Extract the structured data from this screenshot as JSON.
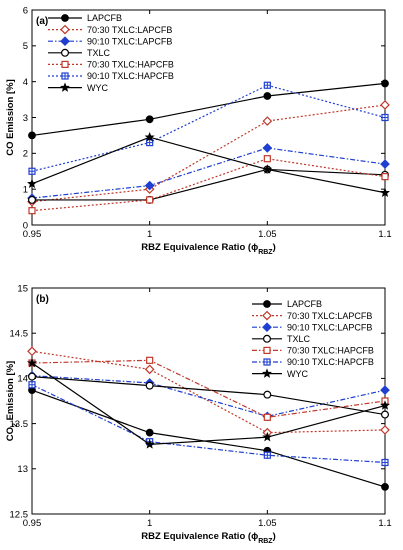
{
  "chart_data": [
    {
      "type": "line",
      "panel_label": "(a)",
      "xlabel_main": "RBZ Equivalence Ratio (",
      "xlabel_sym": "ϕ",
      "xlabel_sub": "RBZ",
      "xlabel_end": ")",
      "ylabel_main": "CO Emission [%]",
      "x": [
        0.95,
        1,
        1.05,
        1.1
      ],
      "x_tick_labels": [
        "0.95",
        "1",
        "1.05",
        "1.1"
      ],
      "ylim": [
        0,
        6
      ],
      "y_ticks": [
        0,
        1,
        2,
        3,
        4,
        5,
        6
      ],
      "legend_position": "top-left",
      "series": [
        {
          "name": "LAPCFB",
          "values": [
            2.5,
            2.95,
            3.6,
            3.95
          ],
          "color": "#000000",
          "dash": "",
          "marker": "circle-filled"
        },
        {
          "name": "70:30 TXLC:LAPCFB",
          "values": [
            0.65,
            1.0,
            2.9,
            3.35
          ],
          "color": "#c0392b",
          "dash": "2,2",
          "marker": "diamond-open"
        },
        {
          "name": "90:10 TXLC:LAPCFB",
          "values": [
            0.75,
            1.1,
            2.15,
            1.7
          ],
          "color": "#1f3fd0",
          "dash": "5,2,1.5,2",
          "marker": "diamond-filled"
        },
        {
          "name": "TXLC",
          "values": [
            0.7,
            0.7,
            1.55,
            1.4
          ],
          "color": "#000000",
          "dash": "",
          "marker": "circle-open"
        },
        {
          "name": "70:30 TXLC:HAPCFB",
          "values": [
            0.4,
            0.7,
            1.85,
            1.35
          ],
          "color": "#c0392b",
          "dash": "2,2",
          "marker": "square-open"
        },
        {
          "name": "90:10 TXLC:HAPCFB",
          "values": [
            1.5,
            2.3,
            3.9,
            3.0
          ],
          "color": "#1f3fd0",
          "dash": "2,2",
          "marker": "square-plus"
        },
        {
          "name": "WYC",
          "values": [
            1.15,
            2.45,
            1.55,
            0.9
          ],
          "color": "#000000",
          "dash": "",
          "marker": "star"
        }
      ]
    },
    {
      "type": "line",
      "panel_label": "(b)",
      "xlabel_main": "RBZ Equivalence Ratio (",
      "xlabel_sym": "ϕ",
      "xlabel_sub": "RBZ",
      "xlabel_end": ")",
      "ylabel_main": "CO",
      "ylabel_sub": "2",
      "ylabel_end": " Emission [%]",
      "x": [
        0.95,
        1,
        1.05,
        1.1
      ],
      "x_tick_labels": [
        "0.95",
        "1",
        "1.05",
        "1.1"
      ],
      "ylim": [
        12.5,
        15
      ],
      "y_ticks": [
        12.5,
        13,
        13.5,
        14,
        14.5,
        15
      ],
      "legend_position": "top-right",
      "series": [
        {
          "name": "LAPCFB",
          "values": [
            13.87,
            13.4,
            13.2,
            12.8
          ],
          "color": "#000000",
          "dash": "",
          "marker": "circle-filled"
        },
        {
          "name": "70:30 TXLC:LAPCFB",
          "values": [
            14.3,
            14.1,
            13.4,
            13.43
          ],
          "color": "#c0392b",
          "dash": "2,2",
          "marker": "diamond-open"
        },
        {
          "name": "90:10 TXLC:LAPCFB",
          "values": [
            14.03,
            13.95,
            13.58,
            13.87
          ],
          "color": "#1f3fd0",
          "dash": "5,2,1.5,2",
          "marker": "diamond-filled"
        },
        {
          "name": "TXLC",
          "values": [
            14.02,
            13.92,
            13.82,
            13.6
          ],
          "color": "#000000",
          "dash": "",
          "marker": "circle-open"
        },
        {
          "name": "70:30 TXLC:HAPCFB",
          "values": [
            14.17,
            14.2,
            13.57,
            13.75
          ],
          "color": "#c0392b",
          "dash": "5,2,1.5,2",
          "marker": "square-open"
        },
        {
          "name": "90:10 TXLC:HAPCFB",
          "values": [
            13.93,
            13.3,
            13.15,
            13.07
          ],
          "color": "#1f3fd0",
          "dash": "5,2,1.5,2",
          "marker": "square-plus"
        },
        {
          "name": "WYC",
          "values": [
            14.17,
            13.27,
            13.35,
            13.7
          ],
          "color": "#000000",
          "dash": "",
          "marker": "star"
        }
      ]
    }
  ]
}
